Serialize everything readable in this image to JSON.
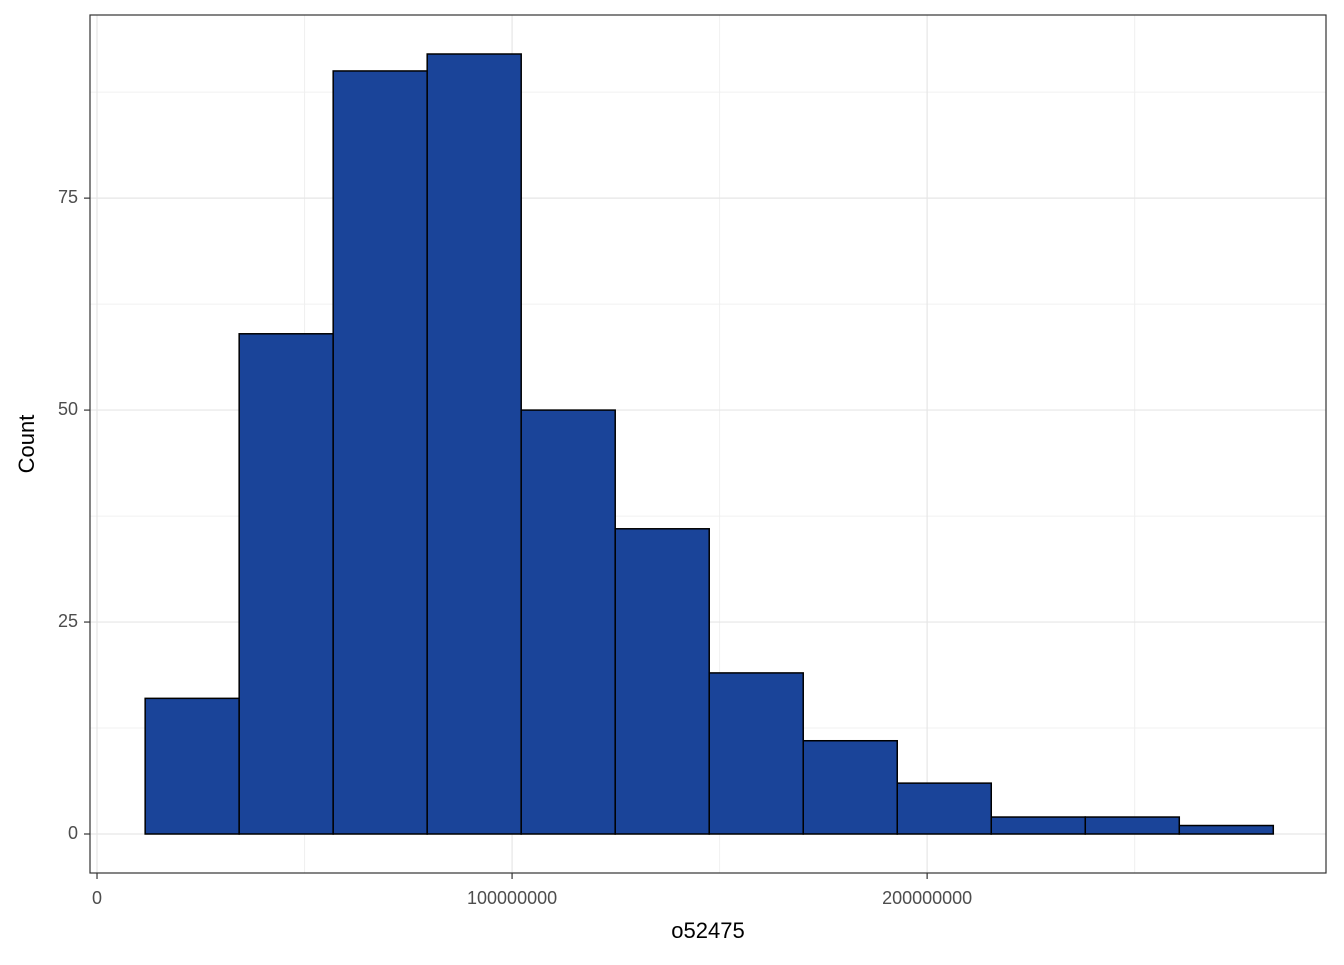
{
  "chart_data": {
    "type": "histogram",
    "x_label": "o52475",
    "y_label": "Count",
    "bins": [
      11600000,
      34250000,
      56900000,
      79550000,
      102200000,
      124850000,
      147500000,
      170150000,
      192800000,
      215450000,
      238100000,
      260750000,
      283400000
    ],
    "values": [
      16,
      59,
      90,
      92,
      50,
      36,
      19,
      11,
      6,
      2,
      2,
      1
    ],
    "color": "#1a4499",
    "xlim": [
      -1690000,
      296100000
    ],
    "xticks": [
      0,
      100000000,
      200000000
    ],
    "ylim": [
      -4.6,
      96.6
    ],
    "yticks": [
      0,
      25,
      50,
      75
    ],
    "grid": true
  }
}
